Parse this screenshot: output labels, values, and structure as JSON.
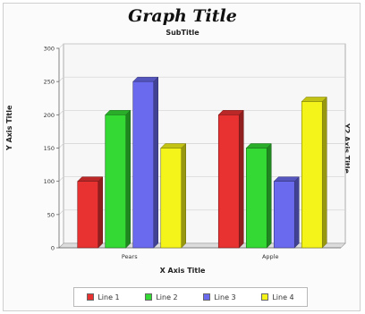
{
  "chart_data": {
    "type": "bar",
    "title": "Graph Title",
    "subtitle": "SubTitle",
    "xlabel": "X Axis Title",
    "ylabel": "Y Axis Title",
    "y2label": "Y2 Axis Title",
    "categories": [
      "Pears",
      "Apple"
    ],
    "series": [
      {
        "name": "Line 1",
        "values": [
          100,
          200
        ],
        "color": "#e83232"
      },
      {
        "name": "Line 2",
        "values": [
          200,
          150
        ],
        "color": "#34d934"
      },
      {
        "name": "Line 3",
        "values": [
          250,
          100
        ],
        "color": "#6a6aee"
      },
      {
        "name": "Line 4",
        "values": [
          150,
          220
        ],
        "color": "#f4f41a"
      }
    ],
    "ylim": [
      0,
      300
    ],
    "yticks": [
      0,
      50,
      100,
      150,
      200,
      250,
      300
    ],
    "grid": true,
    "legend_position": "bottom",
    "style": "3d"
  }
}
